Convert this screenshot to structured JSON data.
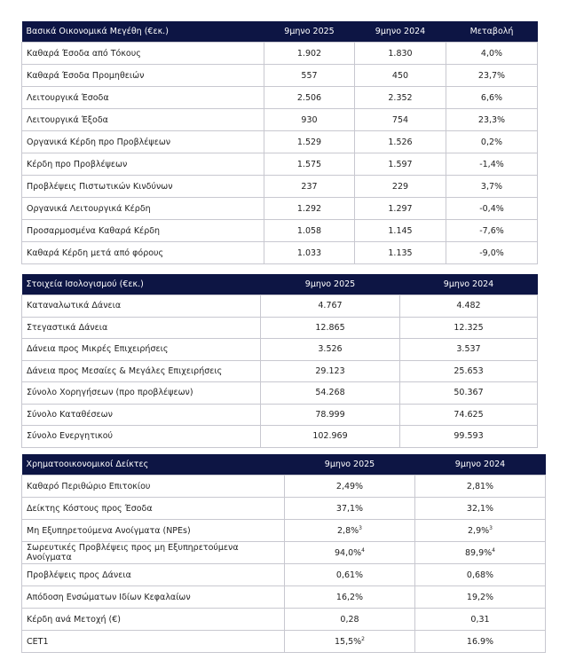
{
  "table1": {
    "headers": [
      "Βασικά Οικονομικά Μεγέθη (€εκ.)",
      "9μηνο 2025",
      "9μηνο 2024",
      "Μεταβολή"
    ],
    "rows": [
      [
        "Καθαρά Έσοδα από Τόκους",
        "1.902",
        "1.830",
        "4,0%"
      ],
      [
        "Καθαρά Έσοδα Προμηθειών",
        "557",
        "450",
        "23,7%"
      ],
      [
        "Λειτουργικά Έσοδα",
        "2.506",
        "2.352",
        "6,6%"
      ],
      [
        "Λειτουργικά Έξοδα",
        "930",
        "754",
        "23,3%"
      ],
      [
        "Οργανικά Κέρδη προ Προβλέψεων",
        "1.529",
        "1.526",
        "0,2%"
      ],
      [
        "Κέρδη προ Προβλέψεων",
        "1.575",
        "1.597",
        "-1,4%"
      ],
      [
        "Προβλέψεις Πιστωτικών Κινδύνων",
        "237",
        "229",
        "3,7%"
      ],
      [
        "Οργανικά Λειτουργικά Κέρδη",
        "1.292",
        "1.297",
        "-0,4%"
      ],
      [
        "Προσαρμοσμένα Καθαρά Κέρδη",
        "1.058",
        "1.145",
        "-7,6%"
      ],
      [
        "Καθαρά Κέρδη μετά από φόρους",
        "1.033",
        "1.135",
        "-9,0%"
      ]
    ]
  },
  "table2": {
    "headers": [
      "Στοιχεία Ισολογισμού (€εκ.)",
      "9μηνο 2025",
      "9μηνο 2024"
    ],
    "rows": [
      [
        "Καταναλωτικά Δάνεια",
        "4.767",
        "4.482"
      ],
      [
        "Στεγαστικά Δάνεια",
        "12.865",
        "12.325"
      ],
      [
        "Δάνεια προς Μικρές Επιχειρήσεις",
        "3.526",
        "3.537"
      ],
      [
        "Δάνεια προς Μεσαίες & Μεγάλες Επιχειρήσεις",
        "29.123",
        "25.653"
      ],
      [
        "Σύνολο Χορηγήσεων (προ προβλέψεων)",
        "54.268",
        "50.367"
      ],
      [
        "Σύνολο Καταθέσεων",
        "78.999",
        "74.625"
      ],
      [
        "Σύνολο Ενεργητικού",
        "102.969",
        "99.593"
      ]
    ]
  },
  "table3": {
    "headers": [
      "Χρηματοοικονομικοί Δείκτες",
      "9μηνο 2025",
      "9μηνο 2024"
    ],
    "rows": [
      [
        "Καθαρό Περιθώριο Επιτοκίου",
        "2,49%",
        "",
        "2,81%",
        ""
      ],
      [
        "Δείκτης Κόστους προς Έσοδα",
        "37,1%",
        "",
        "32,1%",
        ""
      ],
      [
        "Μη Εξυπηρετούμενα Ανοίγματα (NPEs)",
        "2,8%",
        "3",
        "2,9%",
        "3"
      ],
      [
        "Σωρευτικές Προβλέψεις προς μη Εξυπηρετούμενα Ανοίγματα",
        "94,0%",
        "4",
        "89,9%",
        "4"
      ],
      [
        "Προβλέψεις προς Δάνεια",
        "0,61%",
        "",
        "0,68%",
        ""
      ],
      [
        "Απόδοση Ενσώματων Ιδίων Κεφαλαίων",
        "16,2%",
        "",
        "19,2%",
        ""
      ],
      [
        "Κέρδη ανά Μετοχή (€)",
        "0,28",
        "",
        "0,31",
        ""
      ],
      [
        "CET1",
        "15,5%",
        "2",
        "16.9%",
        ""
      ]
    ]
  }
}
